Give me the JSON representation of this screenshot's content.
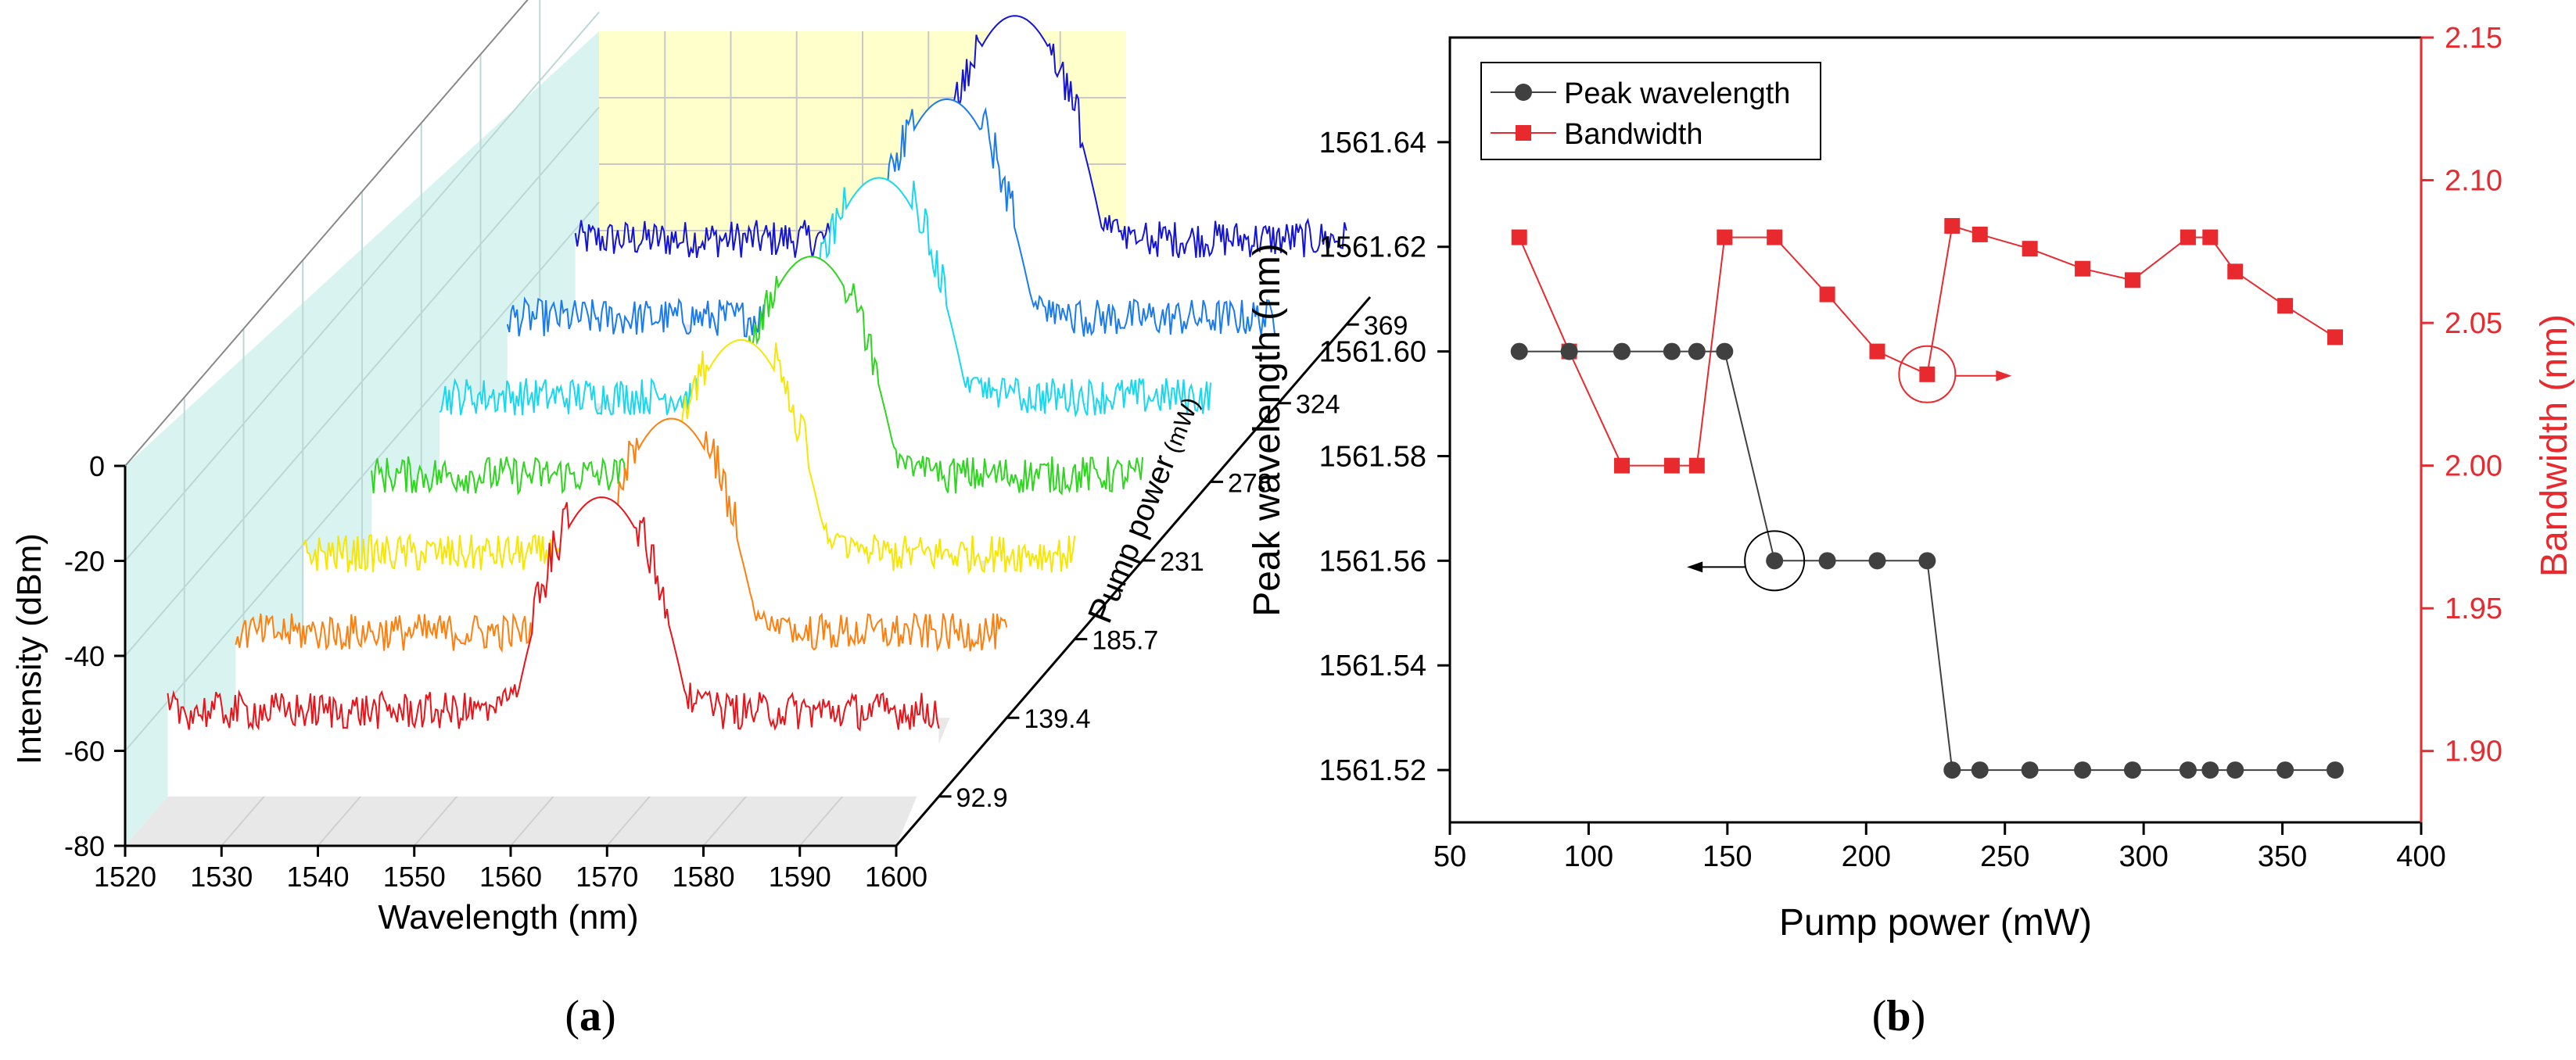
{
  "panel_labels": {
    "a": "(a)",
    "b": "(b)",
    "a_open": "(",
    "a_letter": "a",
    "a_close": ")",
    "b_open": "(",
    "b_letter": "b",
    "b_close": ")"
  },
  "colors": {
    "background": "#ffffff",
    "back_wall": "#ffffcc",
    "side_wall": "#d9f4f0",
    "floor": "#e8e8e8",
    "peak_series": "#404040",
    "bandwidth_series": "#e8292e",
    "axis": "#000000"
  },
  "chart_data": [
    {
      "type": "line",
      "subtype": "3d-waterfall",
      "title": "",
      "xlabel": "Wavelength (nm)",
      "ylabel": "Intensity (dBm)",
      "zlabel_parts": [
        "P",
        "ump power",
        " (mW)"
      ],
      "xlim": [
        1520,
        1600
      ],
      "ylim": [
        -80,
        0
      ],
      "x_ticks": [
        "1520",
        "1530",
        "1540",
        "1550",
        "1560",
        "1570",
        "1580",
        "1590",
        "1600"
      ],
      "y_ticks": [
        "0",
        "-20",
        "-40",
        "-60",
        "-80"
      ],
      "series": [
        {
          "name": "92.9",
          "pump_power": 92.9,
          "color": "#e8141a",
          "center_nm": 1565.0,
          "peak_dbm": -17,
          "noise_floor_dbm": -62
        },
        {
          "name": "139.4",
          "pump_power": 139.4,
          "color": "#ff7f0e",
          "center_nm": 1565.2,
          "peak_dbm": -17,
          "noise_floor_dbm": -62
        },
        {
          "name": "185.7",
          "pump_power": 185.7,
          "color": "#f7e600",
          "center_nm": 1565.4,
          "peak_dbm": -17,
          "noise_floor_dbm": -62
        },
        {
          "name": "231",
          "pump_power": 231,
          "color": "#2ed61f",
          "center_nm": 1565.6,
          "peak_dbm": -16,
          "noise_floor_dbm": -62
        },
        {
          "name": "278",
          "pump_power": 278,
          "color": "#18d8f0",
          "center_nm": 1565.6,
          "peak_dbm": -16,
          "noise_floor_dbm": -62
        },
        {
          "name": "324",
          "pump_power": 324,
          "color": "#1a7bf0",
          "center_nm": 1565.6,
          "peak_dbm": -16,
          "noise_floor_dbm": -62
        },
        {
          "name": "369",
          "pump_power": 369,
          "color": "#1414d8",
          "center_nm": 1565.6,
          "peak_dbm": -15,
          "noise_floor_dbm": -62
        }
      ]
    },
    {
      "type": "line",
      "subtype": "dual-axis-scatter-line",
      "title": "",
      "xlabel": "Pump power (mW)",
      "ylabel": "Peak wavelength (nm)",
      "y2label": "Bandwidth (nm)",
      "xlim": [
        50,
        400
      ],
      "ylim": [
        1561.51,
        1561.66
      ],
      "y2lim": [
        1.875,
        2.15
      ],
      "x_ticks": [
        "50",
        "100",
        "150",
        "200",
        "250",
        "300",
        "350",
        "400"
      ],
      "y_ticks": [
        "1561.52",
        "1561.54",
        "1561.56",
        "1561.58",
        "1561.60",
        "1561.62",
        "1561.64"
      ],
      "y2_ticks": [
        "1.90",
        "1.95",
        "2.00",
        "2.05",
        "2.10",
        "2.15"
      ],
      "legend_position": "top-left",
      "series": [
        {
          "name": "Peak wavelength",
          "axis": "left",
          "marker": "circle",
          "x": [
            75,
            93,
            112,
            130,
            139,
            149,
            167,
            186,
            204,
            222,
            231,
            241,
            259,
            278,
            296,
            316,
            324,
            333,
            351,
            369
          ],
          "values": [
            1561.6,
            1561.6,
            1561.6,
            1561.6,
            1561.6,
            1561.6,
            1561.56,
            1561.56,
            1561.56,
            1561.56,
            1561.52,
            1561.52,
            1561.52,
            1561.52,
            1561.52,
            1561.52,
            1561.52,
            1561.52,
            1561.52,
            1561.52
          ]
        },
        {
          "name": "Bandwidth",
          "axis": "right",
          "marker": "square",
          "x": [
            75,
            93,
            112,
            130,
            139,
            149,
            167,
            186,
            204,
            222,
            231,
            241,
            259,
            278,
            296,
            316,
            324,
            333,
            351,
            369
          ],
          "values": [
            2.08,
            2.04,
            2.0,
            2.0,
            2.0,
            2.08,
            2.08,
            2.06,
            2.04,
            2.032,
            2.084,
            2.081,
            2.076,
            2.069,
            2.065,
            2.08,
            2.08,
            2.068,
            2.056,
            2.045
          ]
        }
      ],
      "annotations": [
        {
          "text": "circle+arrow",
          "target_series": "Peak wavelength",
          "x": 167,
          "value": 1561.56,
          "arrow": "left"
        },
        {
          "text": "circle+arrow",
          "target_series": "Bandwidth",
          "x": 222,
          "value": 2.032,
          "arrow": "right"
        }
      ]
    }
  ]
}
